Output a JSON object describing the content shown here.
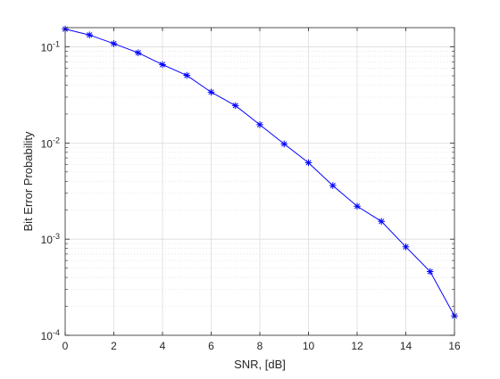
{
  "chart_data": {
    "type": "line",
    "title": "",
    "xlabel": "SNR, [dB]",
    "ylabel": "Bit Error Probability",
    "x_scale": "linear",
    "y_scale": "log",
    "xlim": [
      0,
      16
    ],
    "ylim": [
      0.0001,
      0.1585
    ],
    "grid": true,
    "minor_grid": true,
    "x_ticks": [
      0,
      2,
      4,
      6,
      8,
      10,
      12,
      14,
      16
    ],
    "y_ticks": [
      {
        "value": 0.1,
        "base": "10",
        "exp": "-1"
      },
      {
        "value": 0.01,
        "base": "10",
        "exp": "-2"
      },
      {
        "value": 0.001,
        "base": "10",
        "exp": "-3"
      },
      {
        "value": 0.0001,
        "base": "10",
        "exp": "-4"
      }
    ],
    "series": [
      {
        "color": "#0000ff",
        "marker": "asterisk",
        "x": [
          0,
          1,
          2,
          3,
          4,
          5,
          6,
          7,
          8,
          9,
          10,
          11,
          12,
          13,
          14,
          15,
          16
        ],
        "y": [
          0.153,
          0.133,
          0.108,
          0.0868,
          0.0654,
          0.0505,
          0.0338,
          0.0245,
          0.0155,
          0.00978,
          0.00624,
          0.00361,
          0.0022,
          0.00153,
          0.000832,
          0.00046,
          0.000159
        ]
      }
    ]
  }
}
